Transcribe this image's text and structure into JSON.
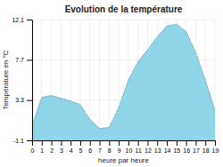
{
  "chart_data": {
    "type": "area",
    "title": "Evolution de la température",
    "xlabel": "heure par heure",
    "ylabel": "Température en °C",
    "x": [
      0,
      1,
      2,
      3,
      4,
      5,
      6,
      7,
      8,
      9,
      10,
      11,
      12,
      13,
      14,
      15,
      16,
      17,
      18,
      19
    ],
    "values": [
      0.5,
      3.6,
      3.8,
      3.5,
      3.2,
      2.8,
      1.2,
      0.2,
      0.3,
      2.5,
      5.5,
      7.5,
      8.8,
      10.2,
      11.4,
      11.6,
      10.8,
      8.5,
      5.5,
      2.2
    ],
    "color": "#8fd4e8",
    "line_style": "dotted",
    "xlim": [
      0,
      19
    ],
    "xticks": [
      0,
      1,
      2,
      3,
      4,
      5,
      6,
      7,
      8,
      9,
      10,
      11,
      12,
      13,
      14,
      15,
      16,
      17,
      18,
      19
    ],
    "ylim": [
      -1.1,
      12.1
    ],
    "yticks": [
      -1.1,
      3.3,
      7.7,
      12.1
    ],
    "grid": true
  }
}
